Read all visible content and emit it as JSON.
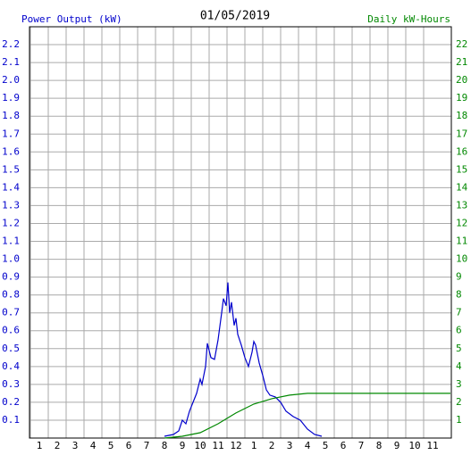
{
  "chart_data": {
    "type": "line",
    "title": "01/05/2019",
    "y_label": "Power Output (kW)",
    "y2_label": "Daily kW-Hours",
    "xlim": [
      0.45,
      24.05
    ],
    "xticks": [
      1,
      2,
      3,
      4,
      5,
      6,
      7,
      8,
      9,
      10,
      11,
      12,
      {
        "value": 13,
        "label": "1"
      },
      {
        "value": 14,
        "label": "2"
      },
      {
        "value": 15,
        "label": "3"
      },
      {
        "value": 16,
        "label": "4"
      },
      {
        "value": 17,
        "label": "5"
      },
      {
        "value": 18,
        "label": "6"
      },
      {
        "value": 19,
        "label": "7"
      },
      {
        "value": 20,
        "label": "8"
      },
      {
        "value": 21,
        "label": "9"
      },
      {
        "value": 22,
        "label": "10"
      },
      {
        "value": 23,
        "label": "11"
      }
    ],
    "ylim": [
      0,
      2.3
    ],
    "yticks": [
      0.1,
      0.2,
      0.3,
      0.4,
      0.5,
      0.6,
      0.7,
      0.8,
      0.9,
      {
        "value": 1.0,
        "label": "1.0"
      },
      1.1,
      1.2,
      1.3,
      1.4,
      1.5,
      1.6,
      1.7,
      1.8,
      1.9,
      {
        "value": 2.0,
        "label": "2.0"
      },
      2.1,
      2.2
    ],
    "y2lim": [
      0,
      23
    ],
    "y2ticks": [
      1,
      2,
      3,
      4,
      5,
      6,
      7,
      8,
      9,
      10,
      11,
      12,
      13,
      14,
      15,
      16,
      17,
      18,
      19,
      20,
      21,
      22
    ],
    "grid": true,
    "series": [
      {
        "name": "Power Output (kW)",
        "color": "#0000cc",
        "x": [
          8.0,
          8.5,
          8.8,
          9.0,
          9.2,
          9.4,
          9.6,
          9.8,
          10.0,
          10.1,
          10.3,
          10.4,
          10.6,
          10.8,
          11.0,
          11.2,
          11.3,
          11.45,
          11.55,
          11.65,
          11.75,
          11.9,
          12.0,
          12.1,
          12.3,
          12.5,
          12.7,
          12.9,
          13.0,
          13.1,
          13.3,
          13.5,
          13.7,
          13.9,
          14.2,
          14.5,
          14.8,
          15.2,
          15.6,
          16.0,
          16.4,
          16.8
        ],
        "values": [
          0.01,
          0.02,
          0.04,
          0.1,
          0.08,
          0.15,
          0.2,
          0.25,
          0.33,
          0.3,
          0.4,
          0.53,
          0.45,
          0.44,
          0.55,
          0.7,
          0.78,
          0.74,
          0.87,
          0.7,
          0.76,
          0.63,
          0.67,
          0.58,
          0.52,
          0.45,
          0.4,
          0.48,
          0.54,
          0.52,
          0.42,
          0.35,
          0.27,
          0.24,
          0.23,
          0.2,
          0.15,
          0.12,
          0.1,
          0.05,
          0.02,
          0.01
        ]
      },
      {
        "name": "Daily kW-Hours",
        "color": "#008800",
        "axis": "y2",
        "x": [
          8.0,
          9.0,
          10.0,
          11.0,
          12.0,
          13.0,
          14.0,
          15.0,
          16.0,
          17.0,
          24.0
        ],
        "values": [
          0,
          0.1,
          0.3,
          0.8,
          1.4,
          1.9,
          2.2,
          2.4,
          2.5,
          2.5,
          2.5
        ]
      }
    ]
  }
}
